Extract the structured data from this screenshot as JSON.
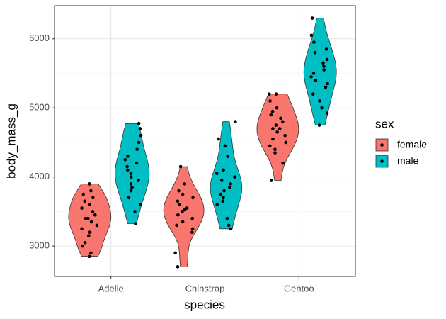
{
  "chart_data": {
    "type": "violin",
    "x_label": "species",
    "y_label": "body_mass_g",
    "categories": [
      "Adelie",
      "Chinstrap",
      "Gentoo"
    ],
    "legend_title": "sex",
    "legend_position": "right",
    "series": [
      {
        "name": "female",
        "color": "#F8766D",
        "values": [
          [
            2850,
            2900,
            3000,
            3050,
            3150,
            3200,
            3250,
            3300,
            3350,
            3400,
            3400,
            3450,
            3500,
            3550,
            3600,
            3650,
            3700,
            3750,
            3800,
            3900
          ],
          [
            2700,
            2900,
            3200,
            3250,
            3300,
            3350,
            3400,
            3450,
            3500,
            3525,
            3550,
            3600,
            3650,
            3700,
            3750,
            3800,
            3900,
            4150
          ],
          [
            3950,
            4200,
            4350,
            4400,
            4450,
            4500,
            4550,
            4600,
            4650,
            4700,
            4700,
            4750,
            4800,
            4850,
            4900,
            4950,
            5000,
            5100,
            5200,
            5200
          ]
        ]
      },
      {
        "name": "male",
        "color": "#00BFC4",
        "values": [
          [
            3325,
            3500,
            3600,
            3700,
            3800,
            3850,
            3900,
            3950,
            4000,
            4050,
            4100,
            4150,
            4200,
            4250,
            4300,
            4400,
            4500,
            4600,
            4700,
            4775
          ],
          [
            3250,
            3300,
            3400,
            3600,
            3650,
            3700,
            3750,
            3800,
            3850,
            3900,
            3950,
            4000,
            4050,
            4100,
            4300,
            4450,
            4550,
            4800
          ],
          [
            4750,
            4925,
            5000,
            5100,
            5200,
            5300,
            5350,
            5400,
            5450,
            5500,
            5550,
            5600,
            5650,
            5700,
            5800,
            5850,
            5950,
            6050,
            6300
          ]
        ]
      }
    ],
    "ylim": [
      2560,
      6480
    ],
    "yticks": [
      3000,
      4000,
      5000,
      6000
    ],
    "grid": true
  }
}
